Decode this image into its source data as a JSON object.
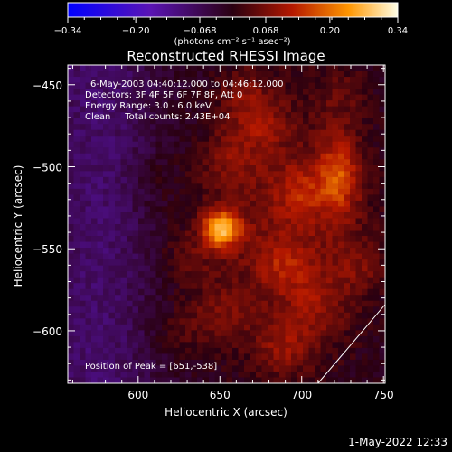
{
  "chart_data": {
    "type": "heatmap",
    "title": "Reconstructed RHESSI Image",
    "xlabel": "Heliocentric X (arcsec)",
    "ylabel": "Heliocentric Y (arcsec)",
    "xlim": [
      557,
      751
    ],
    "ylim": [
      -632,
      -438
    ],
    "xticks": [
      600,
      650,
      700,
      750
    ],
    "yticks": [
      -450,
      -500,
      -550,
      -600
    ],
    "colorbar": {
      "min": -0.34,
      "max": 0.34,
      "ticks": [
        "-0.34",
        "-0.20",
        "-0.068",
        "0.068",
        "0.20",
        "0.34"
      ],
      "tick_values": [
        -0.34,
        -0.2,
        -0.068,
        0.068,
        0.2,
        0.34
      ],
      "unit_label": "(photons cm⁻² s⁻¹ asec⁻²)"
    },
    "annotations": [
      "6-May-2003 04:40:12.000 to 04:46:12.000",
      "Detectors: 3F 4F 5F 6F 7F 8F, Att 0",
      "Energy Range: 3.0 - 6.0 keV",
      "Clean     Total counts: 2.43E+04"
    ],
    "peak_label": "Position of Peak = [651,-538]",
    "peak": {
      "x": 651,
      "y": -538,
      "value": 0.34
    },
    "sources": [
      {
        "x": 651,
        "y": -538,
        "value": 0.34
      },
      {
        "x": 723,
        "y": -505,
        "value": 0.19
      },
      {
        "x": 700,
        "y": -515,
        "value": 0.1
      },
      {
        "x": 675,
        "y": -475,
        "value": 0.09
      },
      {
        "x": 655,
        "y": -495,
        "value": 0.08
      },
      {
        "x": 690,
        "y": -560,
        "value": 0.09
      },
      {
        "x": 710,
        "y": -585,
        "value": 0.08
      },
      {
        "x": 690,
        "y": -610,
        "value": 0.1
      },
      {
        "x": 650,
        "y": -590,
        "value": 0.07
      },
      {
        "x": 625,
        "y": -600,
        "value": 0.05
      },
      {
        "x": 665,
        "y": -455,
        "value": 0.08
      },
      {
        "x": 725,
        "y": -455,
        "value": 0.06
      },
      {
        "x": 630,
        "y": -555,
        "value": 0.06
      },
      {
        "x": 735,
        "y": -560,
        "value": 0.07
      },
      {
        "x": 610,
        "y": -510,
        "value": 0.03
      }
    ],
    "limb_line": [
      [
        710,
        -632
      ],
      [
        751,
        -584
      ]
    ]
  },
  "footer": {
    "date": "1-May-2022 12:33"
  }
}
